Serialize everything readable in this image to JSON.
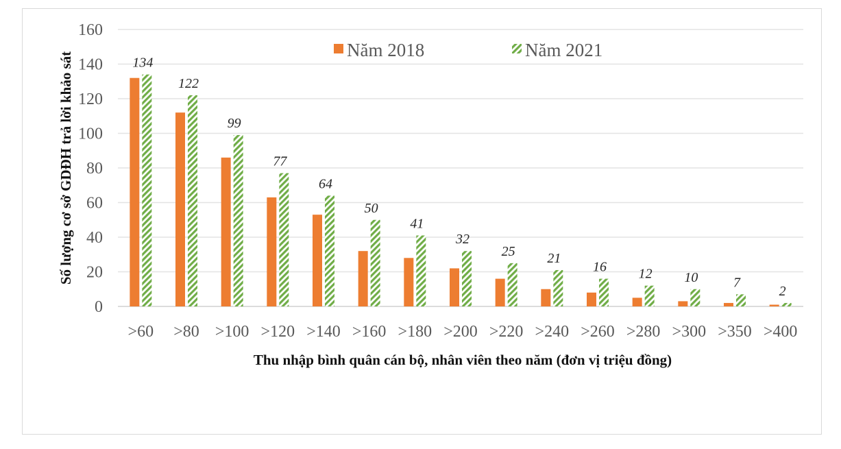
{
  "chart_data": {
    "type": "bar",
    "xlabel": "Thu nhập bình quân cán bộ, nhân viên theo năm (đơn vị triệu đồng)",
    "ylabel": "Số lượng cơ sở GDĐH trả lời khảo sát",
    "ylim": [
      0,
      160
    ],
    "yticks": [
      0,
      20,
      40,
      60,
      80,
      100,
      120,
      140,
      160
    ],
    "grid": true,
    "legend_position": "top-center",
    "categories": [
      ">60",
      ">80",
      ">100",
      ">120",
      ">140",
      ">160",
      ">180",
      ">200",
      ">220",
      ">240",
      ">260",
      ">280",
      ">300",
      ">350",
      ">400"
    ],
    "series": [
      {
        "name": "Năm 2018",
        "color": "#ED7D31",
        "pattern": "solid",
        "values": [
          132,
          112,
          86,
          63,
          53,
          32,
          28,
          22,
          16,
          10,
          8,
          5,
          3,
          2,
          1
        ],
        "data_labels": false
      },
      {
        "name": "Năm 2021",
        "color": "#70AD47",
        "pattern": "diagonal-hatch",
        "values": [
          134,
          122,
          99,
          77,
          64,
          50,
          41,
          32,
          25,
          21,
          16,
          12,
          10,
          7,
          2
        ],
        "data_labels": true
      }
    ]
  }
}
